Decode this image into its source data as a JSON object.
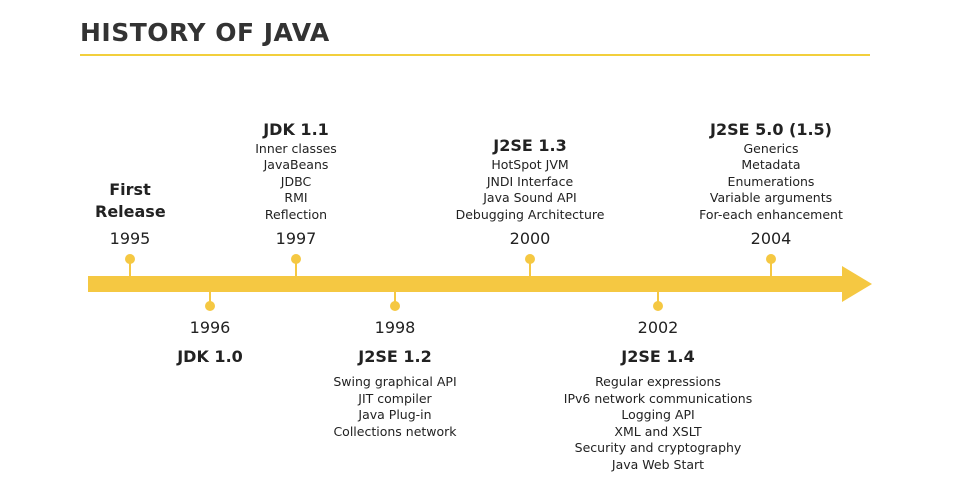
{
  "header": {
    "title": "HISTORY OF JAVA"
  },
  "events": [
    {
      "year": "1995",
      "title": "First Release",
      "items": []
    },
    {
      "year": "1996",
      "title": "JDK 1.0",
      "items": []
    },
    {
      "year": "1997",
      "title": "JDK 1.1",
      "items": [
        "Inner classes",
        "JavaBeans",
        "JDBC",
        "RMI",
        "Reflection"
      ]
    },
    {
      "year": "1998",
      "title": "J2SE 1.2",
      "items": [
        "Swing graphical API",
        "JIT compiler",
        "Java Plug-in",
        "Collections network"
      ]
    },
    {
      "year": "2000",
      "title": "J2SE 1.3",
      "items": [
        "HotSpot JVM",
        "JNDI Interface",
        "Java Sound API",
        "Debugging Architecture"
      ]
    },
    {
      "year": "2002",
      "title": "J2SE 1.4",
      "items": [
        "Regular expressions",
        "IPv6 network communications",
        "Logging API",
        "XML and XSLT",
        "Security and cryptography",
        "Java Web Start"
      ]
    },
    {
      "year": "2004",
      "title": "J2SE 5.0 (1.5)",
      "items": [
        "Generics",
        "Metadata",
        "Enumerations",
        "Variable arguments",
        "For-each enhancement"
      ]
    }
  ]
}
